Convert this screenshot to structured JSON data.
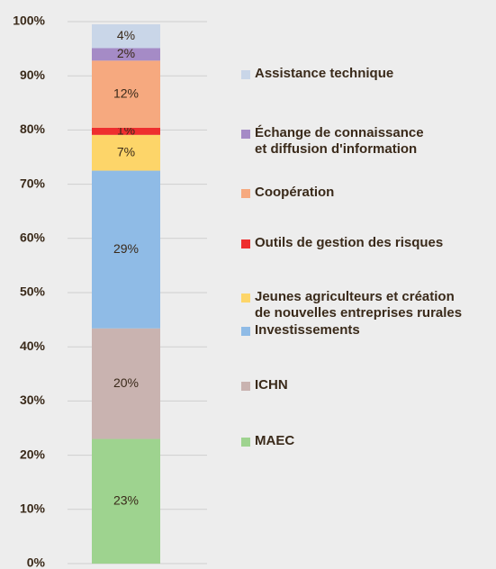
{
  "chart_data": {
    "type": "stacked_bar",
    "ylim": [
      0,
      100
    ],
    "yticks": [
      {
        "value": 0,
        "label": "0%"
      },
      {
        "value": 10,
        "label": "10%"
      },
      {
        "value": 20,
        "label": "20%"
      },
      {
        "value": 30,
        "label": "30%"
      },
      {
        "value": 40,
        "label": "40%"
      },
      {
        "value": 50,
        "label": "50%"
      },
      {
        "value": 60,
        "label": "60%"
      },
      {
        "value": 70,
        "label": "70%"
      },
      {
        "value": 80,
        "label": "80%"
      },
      {
        "value": 90,
        "label": "90%"
      },
      {
        "value": 100,
        "label": "100%"
      }
    ],
    "grid": true,
    "legend": "right",
    "series": [
      {
        "name": "MAEC",
        "color": "#9ed38f",
        "values": [
          23
        ],
        "value_labels": [
          "23%"
        ]
      },
      {
        "name": "ICHN",
        "color": "#c9b3b0",
        "values": [
          20.4
        ],
        "value_labels": [
          "20%"
        ]
      },
      {
        "name": "Investissements",
        "color": "#8fbbe6",
        "values": [
          29.1
        ],
        "value_labels": [
          "29%"
        ]
      },
      {
        "name": "Jeunes agriculteurs et création\nde nouvelles entreprises rurales",
        "color": "#fdd569",
        "values": [
          6.6
        ],
        "value_labels": [
          "7%"
        ]
      },
      {
        "name": "Outils de gestion des risques",
        "color": "#ee2e2e",
        "values": [
          1.3
        ],
        "value_labels": [
          "1%"
        ]
      },
      {
        "name": "Coopération",
        "color": "#f6a97f",
        "values": [
          12.4
        ],
        "value_labels": [
          "12%"
        ]
      },
      {
        "name": "Échange de connaissance\net diffusion d'information",
        "color": "#a58bc6",
        "values": [
          2.3
        ],
        "value_labels": [
          "2%"
        ]
      },
      {
        "name": "Assistance technique",
        "color": "#c9d6e8",
        "values": [
          4.4
        ],
        "value_labels": [
          "4%"
        ]
      }
    ]
  }
}
